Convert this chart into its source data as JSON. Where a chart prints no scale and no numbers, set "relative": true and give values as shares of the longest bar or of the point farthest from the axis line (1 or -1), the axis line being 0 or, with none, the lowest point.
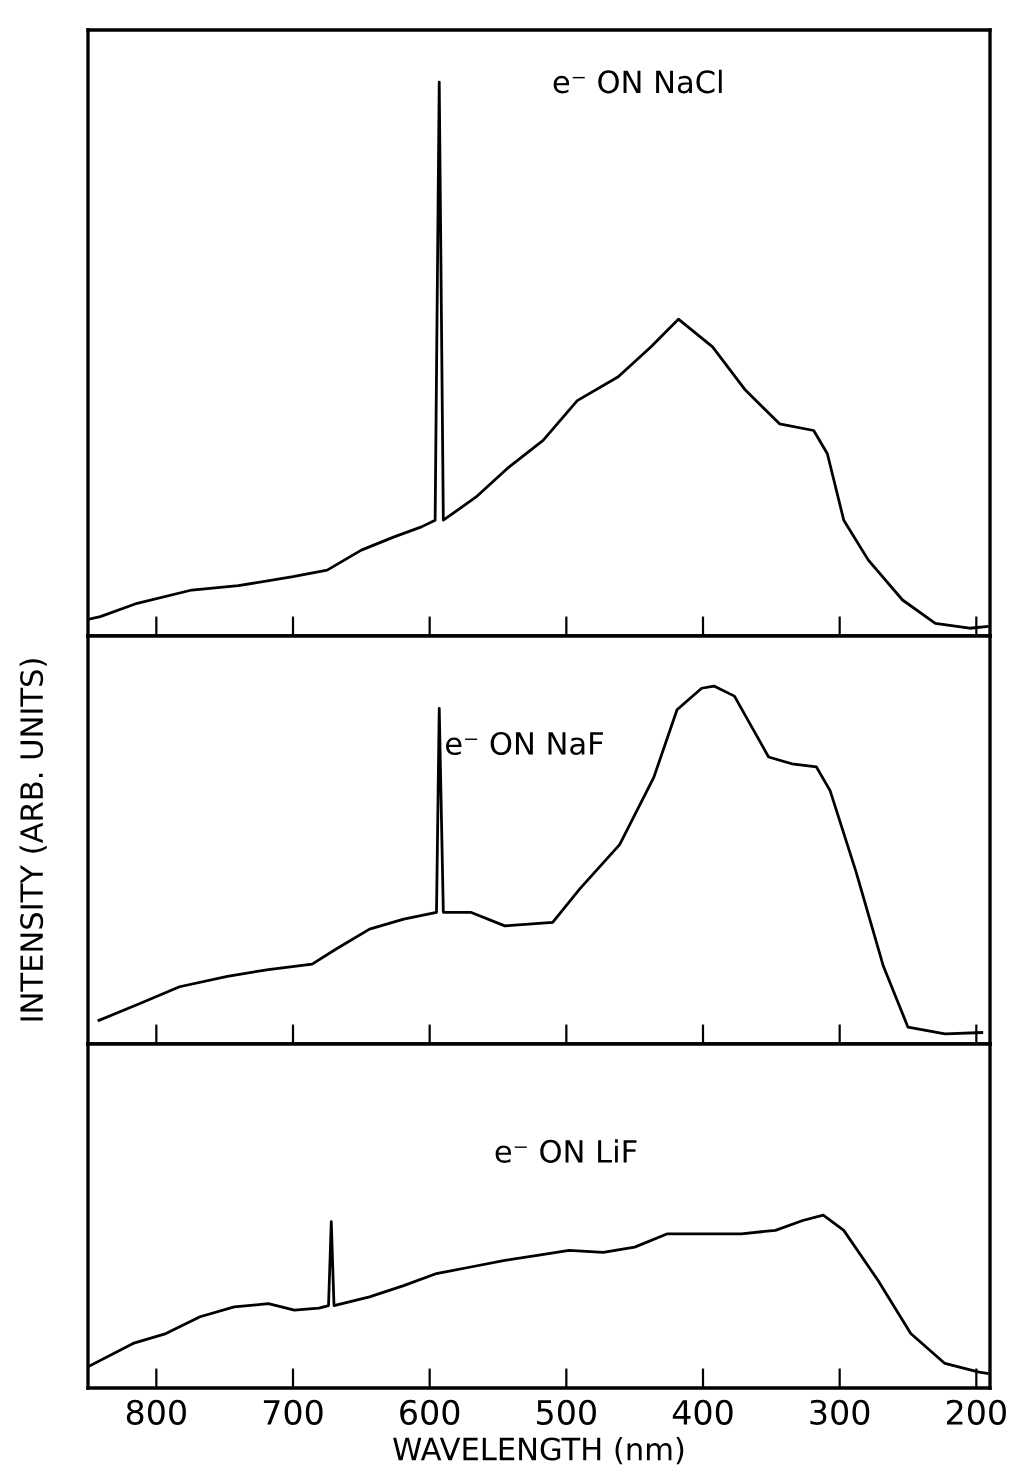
{
  "chart_data": [
    {
      "type": "line",
      "relative": true,
      "annotations": [
        "e⁻ ON NaCl"
      ],
      "xlim": [
        850,
        190
      ],
      "xticks": [
        800,
        700,
        600,
        500,
        400,
        300,
        200
      ],
      "tick_labels": false,
      "grid": false,
      "legend": false,
      "series": [
        {
          "color": "#000000",
          "x": [
            850,
            841,
            814,
            774,
            740,
            700,
            675,
            650,
            626,
            606,
            596,
            593,
            590,
            566,
            542,
            517,
            492,
            462,
            438,
            418,
            393,
            369,
            344,
            319,
            309,
            297,
            279,
            254,
            230,
            205,
            192
          ],
          "values": [
            0.03,
            0.035,
            0.059,
            0.083,
            0.091,
            0.107,
            0.119,
            0.155,
            0.179,
            0.197,
            0.209,
            1.0,
            0.209,
            0.251,
            0.305,
            0.353,
            0.425,
            0.468,
            0.522,
            0.572,
            0.522,
            0.444,
            0.383,
            0.371,
            0.329,
            0.209,
            0.137,
            0.065,
            0.023,
            0.014,
            0.017
          ]
        }
      ]
    },
    {
      "type": "line",
      "relative": true,
      "ylabel": "INTENSITY (ARB. UNITS)",
      "annotations": [
        "e⁻ ON NaF"
      ],
      "xlim": [
        850,
        190
      ],
      "xticks": [
        800,
        700,
        600,
        500,
        400,
        300,
        200
      ],
      "tick_labels": false,
      "grid": false,
      "legend": false,
      "series": [
        {
          "color": "#000000",
          "x": [
            842,
            812,
            783,
            748,
            718,
            686,
            669,
            644,
            619,
            595,
            593,
            590,
            570,
            545,
            510,
            490,
            461,
            436,
            419,
            401,
            392,
            377,
            352,
            335,
            317,
            307,
            288,
            268,
            250,
            223,
            196
          ],
          "values": [
            0.066,
            0.113,
            0.16,
            0.189,
            0.208,
            0.223,
            0.264,
            0.321,
            0.349,
            0.368,
            0.938,
            0.368,
            0.368,
            0.33,
            0.34,
            0.434,
            0.557,
            0.745,
            0.934,
            0.994,
            1.0,
            0.972,
            0.802,
            0.783,
            0.774,
            0.708,
            0.481,
            0.217,
            0.047,
            0.028,
            0.032
          ]
        }
      ]
    },
    {
      "type": "line",
      "relative": true,
      "xlabel": "WAVELENGTH (nm)",
      "annotations": [
        "e⁻ ON LiF"
      ],
      "xlim": [
        850,
        190
      ],
      "xticks": [
        800,
        700,
        600,
        500,
        400,
        300,
        200
      ],
      "tick_labels": "x",
      "grid": false,
      "legend": false,
      "series": [
        {
          "color": "#000000",
          "x": [
            850,
            817,
            793,
            768,
            743,
            718,
            699,
            681,
            674,
            672,
            670,
            644,
            619,
            595,
            570,
            545,
            520,
            498,
            473,
            450,
            426,
            397,
            372,
            347,
            327,
            312,
            297,
            272,
            248,
            223,
            198,
            192
          ],
          "values": [
            0.123,
            0.258,
            0.315,
            0.412,
            0.469,
            0.488,
            0.45,
            0.462,
            0.477,
            0.962,
            0.477,
            0.527,
            0.592,
            0.662,
            0.7,
            0.738,
            0.769,
            0.796,
            0.785,
            0.815,
            0.892,
            0.892,
            0.892,
            0.912,
            0.969,
            1.0,
            0.912,
            0.623,
            0.315,
            0.142,
            0.092,
            0.085
          ]
        }
      ]
    }
  ]
}
